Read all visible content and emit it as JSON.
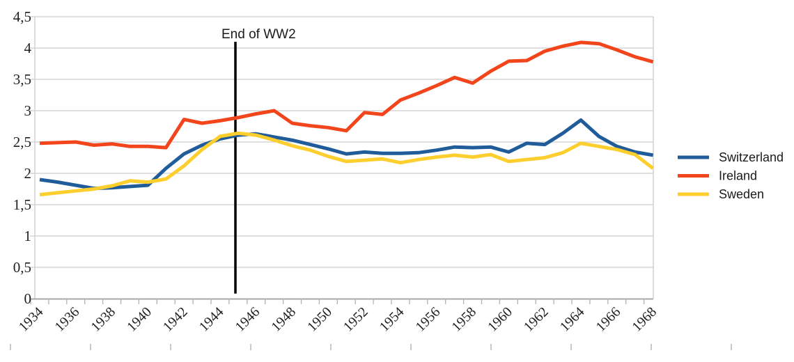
{
  "chart_data": {
    "type": "line",
    "title": "",
    "xlabel": "",
    "ylabel": "",
    "x": [
      1934,
      1935,
      1936,
      1937,
      1938,
      1939,
      1940,
      1941,
      1942,
      1943,
      1944,
      1945,
      1946,
      1947,
      1948,
      1949,
      1950,
      1951,
      1952,
      1953,
      1954,
      1955,
      1956,
      1957,
      1958,
      1959,
      1960,
      1961,
      1962,
      1963,
      1964,
      1965,
      1966,
      1967,
      1968
    ],
    "x_axis_tick_labels": [
      "1934",
      "1936",
      "1938",
      "1940",
      "1942",
      "1944",
      "1946",
      "1948",
      "1950",
      "1952",
      "1954",
      "1956",
      "1958",
      "1960",
      "1962",
      "1964",
      "1966",
      "1968"
    ],
    "y_axis_tick_labels": [
      "0",
      "0,5",
      "1",
      "1,5",
      "2",
      "2,5",
      "3",
      "3,5",
      "4",
      "4,5"
    ],
    "ylim": [
      0,
      4.5
    ],
    "ytick_step": 0.5,
    "decimal_separator": ",",
    "grid": "horizontal",
    "legend_position": "right",
    "series": [
      {
        "name": "Switzerland",
        "color": "#1f5c99",
        "values": [
          1.9,
          1.86,
          1.81,
          1.76,
          1.77,
          1.79,
          1.81,
          2.08,
          2.31,
          2.45,
          2.55,
          2.61,
          2.63,
          2.58,
          2.53,
          2.46,
          2.39,
          2.31,
          2.34,
          2.32,
          2.32,
          2.33,
          2.37,
          2.42,
          2.41,
          2.42,
          2.34,
          2.48,
          2.46,
          2.64,
          2.85,
          2.59,
          2.43,
          2.34,
          2.29
        ]
      },
      {
        "name": "Ireland",
        "color": "#f2451c",
        "values": [
          2.48,
          2.49,
          2.5,
          2.45,
          2.47,
          2.43,
          2.43,
          2.41,
          2.86,
          2.8,
          2.84,
          2.89,
          2.95,
          3.0,
          2.8,
          2.76,
          2.73,
          2.68,
          2.97,
          2.94,
          3.17,
          3.28,
          3.4,
          3.53,
          3.44,
          3.63,
          3.79,
          3.8,
          3.95,
          4.03,
          4.09,
          4.07,
          3.97,
          3.86,
          3.78
        ]
      },
      {
        "name": "Sweden",
        "color": "#fcce2e",
        "values": [
          1.66,
          1.69,
          1.72,
          1.75,
          1.8,
          1.88,
          1.86,
          1.91,
          2.12,
          2.38,
          2.59,
          2.64,
          2.61,
          2.53,
          2.44,
          2.37,
          2.27,
          2.19,
          2.21,
          2.23,
          2.17,
          2.22,
          2.26,
          2.29,
          2.26,
          2.3,
          2.19,
          2.22,
          2.25,
          2.33,
          2.48,
          2.43,
          2.38,
          2.3,
          2.08
        ]
      }
    ],
    "annotation": {
      "label": "End of WW2",
      "x_year": 1944.85,
      "y_from": 0.08,
      "y_to": 4.1
    }
  },
  "style": {
    "gridline_color": "#cdcdcd",
    "axis_color": "#a9a9a9",
    "tick_color": "#b3b3b3",
    "ruler_color": "#c9c9c9",
    "annotation_line_color": "#000000",
    "background": "#ffffff"
  }
}
